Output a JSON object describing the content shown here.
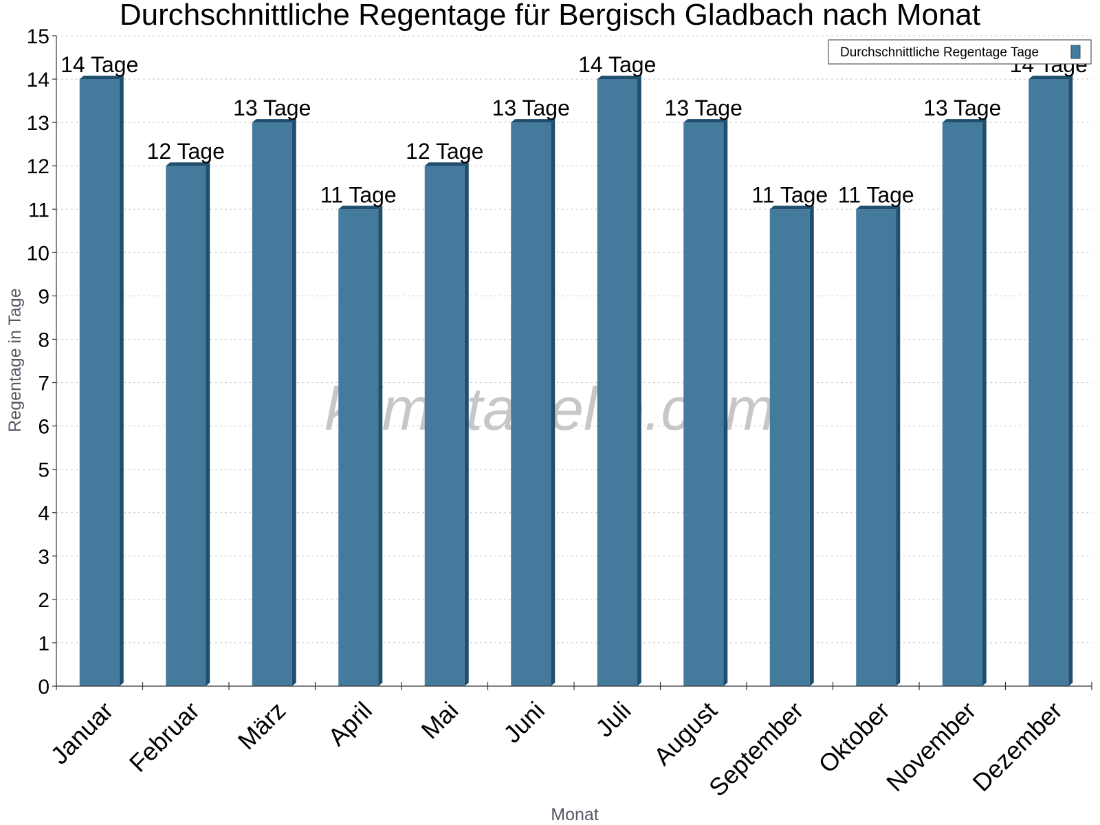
{
  "chart_data": {
    "type": "bar",
    "title": "Durchschnittliche Regentage für Bergisch Gladbach nach Monat",
    "xlabel": "Monat",
    "ylabel": "Regentage in Tage",
    "ylim": [
      0,
      15
    ],
    "yticks": [
      0,
      1,
      2,
      3,
      4,
      5,
      6,
      7,
      8,
      9,
      10,
      11,
      12,
      13,
      14,
      15
    ],
    "grid": true,
    "legend_position": "top-right",
    "categories": [
      "Januar",
      "Februar",
      "März",
      "April",
      "Mai",
      "Juni",
      "Juli",
      "August",
      "September",
      "Oktober",
      "November",
      "Dezember"
    ],
    "series": [
      {
        "name": "Durchschnittliche Regentage Tage",
        "values": [
          14,
          12,
          13,
          11,
          12,
          13,
          14,
          13,
          11,
          11,
          13,
          14
        ],
        "labels": [
          "14 Tage",
          "12 Tage",
          "13 Tage",
          "11 Tage",
          "12 Tage",
          "13 Tage",
          "14 Tage",
          "13 Tage",
          "11 Tage",
          "11 Tage",
          "13 Tage",
          "14 Tage"
        ],
        "color": "#447a9c",
        "side_color": "#1f4e6e"
      }
    ]
  },
  "watermark": "klimatabelle.com"
}
